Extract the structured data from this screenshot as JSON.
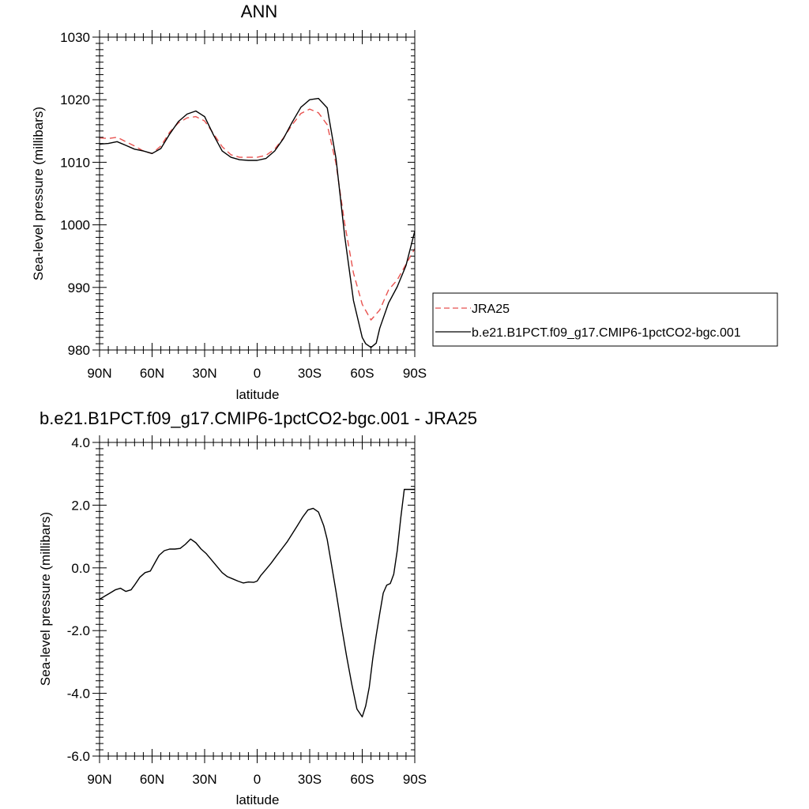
{
  "chart_data": [
    {
      "type": "line",
      "title": "ANN",
      "xlabel": "latitude",
      "ylabel": "Sea-level pressure (millibars)",
      "xlim": [
        90,
        -90
      ],
      "ylim": [
        980,
        1030
      ],
      "x_ticks": [
        90,
        60,
        30,
        0,
        -30,
        -60,
        -90
      ],
      "x_tick_labels": [
        "90N",
        "60N",
        "30N",
        "0",
        "30S",
        "60S",
        "90S"
      ],
      "y_ticks": [
        980,
        990,
        1000,
        1010,
        1020,
        1030
      ],
      "y_tick_labels": [
        "980",
        "990",
        "1000",
        "1010",
        "1020",
        "1030"
      ],
      "legend": "right",
      "series": [
        {
          "name": "JRA25",
          "color": "#e8524f",
          "dash": "dashed",
          "x": [
            90,
            85,
            80,
            75,
            70,
            65,
            60,
            55,
            50,
            45,
            40,
            35,
            30,
            25,
            20,
            15,
            10,
            5,
            0,
            -5,
            -10,
            -15,
            -20,
            -25,
            -30,
            -35,
            -40,
            -45,
            -50,
            -55,
            -60,
            -65,
            -70,
            -75,
            -80,
            -85,
            -90
          ],
          "values": [
            1013.9,
            1013.8,
            1014.0,
            1013.3,
            1012.6,
            1011.8,
            1011.4,
            1012.6,
            1014.8,
            1016.3,
            1017.1,
            1017.3,
            1016.6,
            1014.6,
            1012.5,
            1011.2,
            1010.8,
            1010.8,
            1010.8,
            1011.1,
            1012.1,
            1013.9,
            1016.0,
            1017.8,
            1018.5,
            1017.9,
            1016.0,
            1009.8,
            1000.2,
            992.3,
            987.3,
            984.8,
            986.4,
            989.6,
            991.2,
            993.7,
            996.2
          ]
        },
        {
          "name": "b.e21.B1PCT.f09_g17.CMIP6-1pctCO2-bgc.001",
          "color": "#000000",
          "dash": "solid",
          "x": [
            90,
            85,
            80,
            75,
            70,
            65,
            60,
            55,
            50,
            45,
            40,
            35,
            30,
            25,
            20,
            15,
            10,
            5,
            0,
            -5,
            -10,
            -15,
            -20,
            -25,
            -30,
            -35,
            -40,
            -45,
            -50,
            -55,
            -60,
            -62,
            -65,
            -68,
            -70,
            -75,
            -80,
            -85,
            -90
          ],
          "values": [
            1012.9,
            1013.0,
            1013.3,
            1012.7,
            1012.1,
            1011.8,
            1011.4,
            1012.2,
            1014.5,
            1016.5,
            1017.7,
            1018.2,
            1017.3,
            1014.4,
            1011.8,
            1010.8,
            1010.4,
            1010.3,
            1010.3,
            1010.6,
            1011.8,
            1013.8,
            1016.4,
            1018.8,
            1020.0,
            1020.2,
            1018.7,
            1010.6,
            998.2,
            987.9,
            982.0,
            981.0,
            980.4,
            981.1,
            983.5,
            987.5,
            990.1,
            993.5,
            999.0
          ]
        }
      ]
    },
    {
      "type": "line",
      "title": "b.e21.B1PCT.f09_g17.CMIP6-1pctCO2-bgc.001 - JRA25",
      "xlabel": "latitude",
      "ylabel": "Sea-level pressure (millibars)",
      "xlim": [
        90,
        -90
      ],
      "ylim": [
        -6,
        4
      ],
      "x_ticks": [
        90,
        60,
        30,
        0,
        -30,
        -60,
        -90
      ],
      "x_tick_labels": [
        "90N",
        "60N",
        "30N",
        "0",
        "30S",
        "60S",
        "90S"
      ],
      "y_ticks": [
        -6,
        -4,
        -2,
        0,
        2,
        4
      ],
      "y_tick_labels": [
        "-6.0",
        "-4.0",
        "-2.0",
        "0.0",
        "2.0",
        "4.0"
      ],
      "series": [
        {
          "color": "#000000",
          "dash": "solid",
          "x": [
            90,
            87,
            84,
            81,
            78,
            75,
            72,
            70,
            67,
            64,
            61,
            58,
            56,
            53,
            50,
            47,
            44,
            41,
            38,
            35,
            32,
            29,
            26,
            23,
            20,
            17,
            14,
            11,
            8,
            5,
            2,
            0,
            -2,
            -5,
            -8,
            -11,
            -14,
            -17,
            -20,
            -23,
            -26,
            -29,
            -32,
            -35,
            -38,
            -40,
            -42,
            -45,
            -48,
            -51,
            -54,
            -57,
            -60,
            -62,
            -64,
            -66,
            -68,
            -70,
            -72,
            -74,
            -76,
            -78,
            -80,
            -82,
            -84,
            -86,
            -88,
            -90
          ],
          "values": [
            -1.0,
            -0.9,
            -0.8,
            -0.7,
            -0.65,
            -0.75,
            -0.7,
            -0.55,
            -0.3,
            -0.15,
            -0.1,
            0.2,
            0.4,
            0.55,
            0.6,
            0.6,
            0.62,
            0.75,
            0.92,
            0.8,
            0.6,
            0.45,
            0.25,
            0.05,
            -0.15,
            -0.28,
            -0.35,
            -0.42,
            -0.48,
            -0.45,
            -0.46,
            -0.42,
            -0.25,
            -0.05,
            0.15,
            0.38,
            0.6,
            0.82,
            1.08,
            1.35,
            1.62,
            1.85,
            1.9,
            1.78,
            1.35,
            0.9,
            0.25,
            -0.75,
            -1.8,
            -2.8,
            -3.7,
            -4.5,
            -4.75,
            -4.4,
            -3.8,
            -2.9,
            -2.15,
            -1.45,
            -0.8,
            -0.55,
            -0.5,
            -0.2,
            0.55,
            1.6,
            2.5,
            2.5,
            2.5,
            2.5
          ]
        }
      ]
    }
  ]
}
